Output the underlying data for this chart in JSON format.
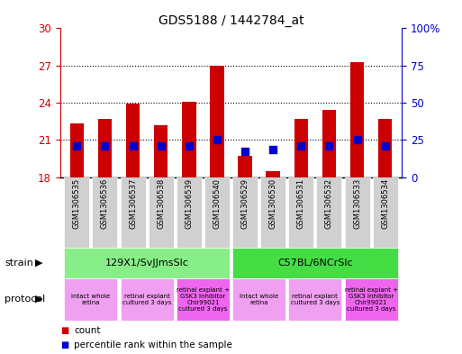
{
  "title": "GDS5188 / 1442784_at",
  "samples": [
    "GSM1306535",
    "GSM1306536",
    "GSM1306537",
    "GSM1306538",
    "GSM1306539",
    "GSM1306540",
    "GSM1306529",
    "GSM1306530",
    "GSM1306531",
    "GSM1306532",
    "GSM1306533",
    "GSM1306534"
  ],
  "count_values": [
    22.3,
    22.7,
    23.9,
    22.2,
    24.1,
    27.0,
    19.7,
    18.5,
    22.7,
    23.4,
    27.3,
    22.7
  ],
  "percentile_values": [
    20.5,
    20.5,
    20.5,
    20.5,
    20.5,
    21.0,
    20.1,
    20.2,
    20.5,
    20.5,
    21.0,
    20.5
  ],
  "count_base": 18,
  "ylim_left": [
    18,
    30
  ],
  "ylim_right": [
    0,
    100
  ],
  "yticks_left": [
    18,
    21,
    24,
    27,
    30
  ],
  "yticks_right": [
    0,
    25,
    50,
    75,
    100
  ],
  "ytick_labels_right": [
    "0",
    "25",
    "50",
    "75",
    "100%"
  ],
  "dotted_lines": [
    21,
    24,
    27
  ],
  "bar_color": "#cc0000",
  "dot_color": "#0000cc",
  "bar_width": 0.5,
  "dot_size": 30,
  "strain_groups": [
    {
      "label": "129X1/SvJJmsSlc",
      "start": 0,
      "end": 5,
      "color": "#88ee88"
    },
    {
      "label": "C57BL/6NCrSlc",
      "start": 6,
      "end": 11,
      "color": "#44dd44"
    }
  ],
  "protocol_groups": [
    {
      "label": "intact whole\nretina",
      "start": 0,
      "end": 1,
      "color": "#f0a0f0"
    },
    {
      "label": "retinal explant\ncultured 3 days",
      "start": 2,
      "end": 3,
      "color": "#f0a0f0"
    },
    {
      "label": "retinal explant +\nGSK3 inhibitor\nChir99021\ncultured 3 days",
      "start": 4,
      "end": 5,
      "color": "#ee66ee"
    },
    {
      "label": "intact whole\nretina",
      "start": 6,
      "end": 7,
      "color": "#f0a0f0"
    },
    {
      "label": "retinal explant\ncultured 3 days",
      "start": 8,
      "end": 9,
      "color": "#f0a0f0"
    },
    {
      "label": "retinal explant +\nGSK3 inhibitor\nChir99021\ncultured 3 days",
      "start": 10,
      "end": 11,
      "color": "#ee66ee"
    }
  ],
  "bar_color_red": "#cc0000",
  "dot_color_blue": "#0000cc"
}
